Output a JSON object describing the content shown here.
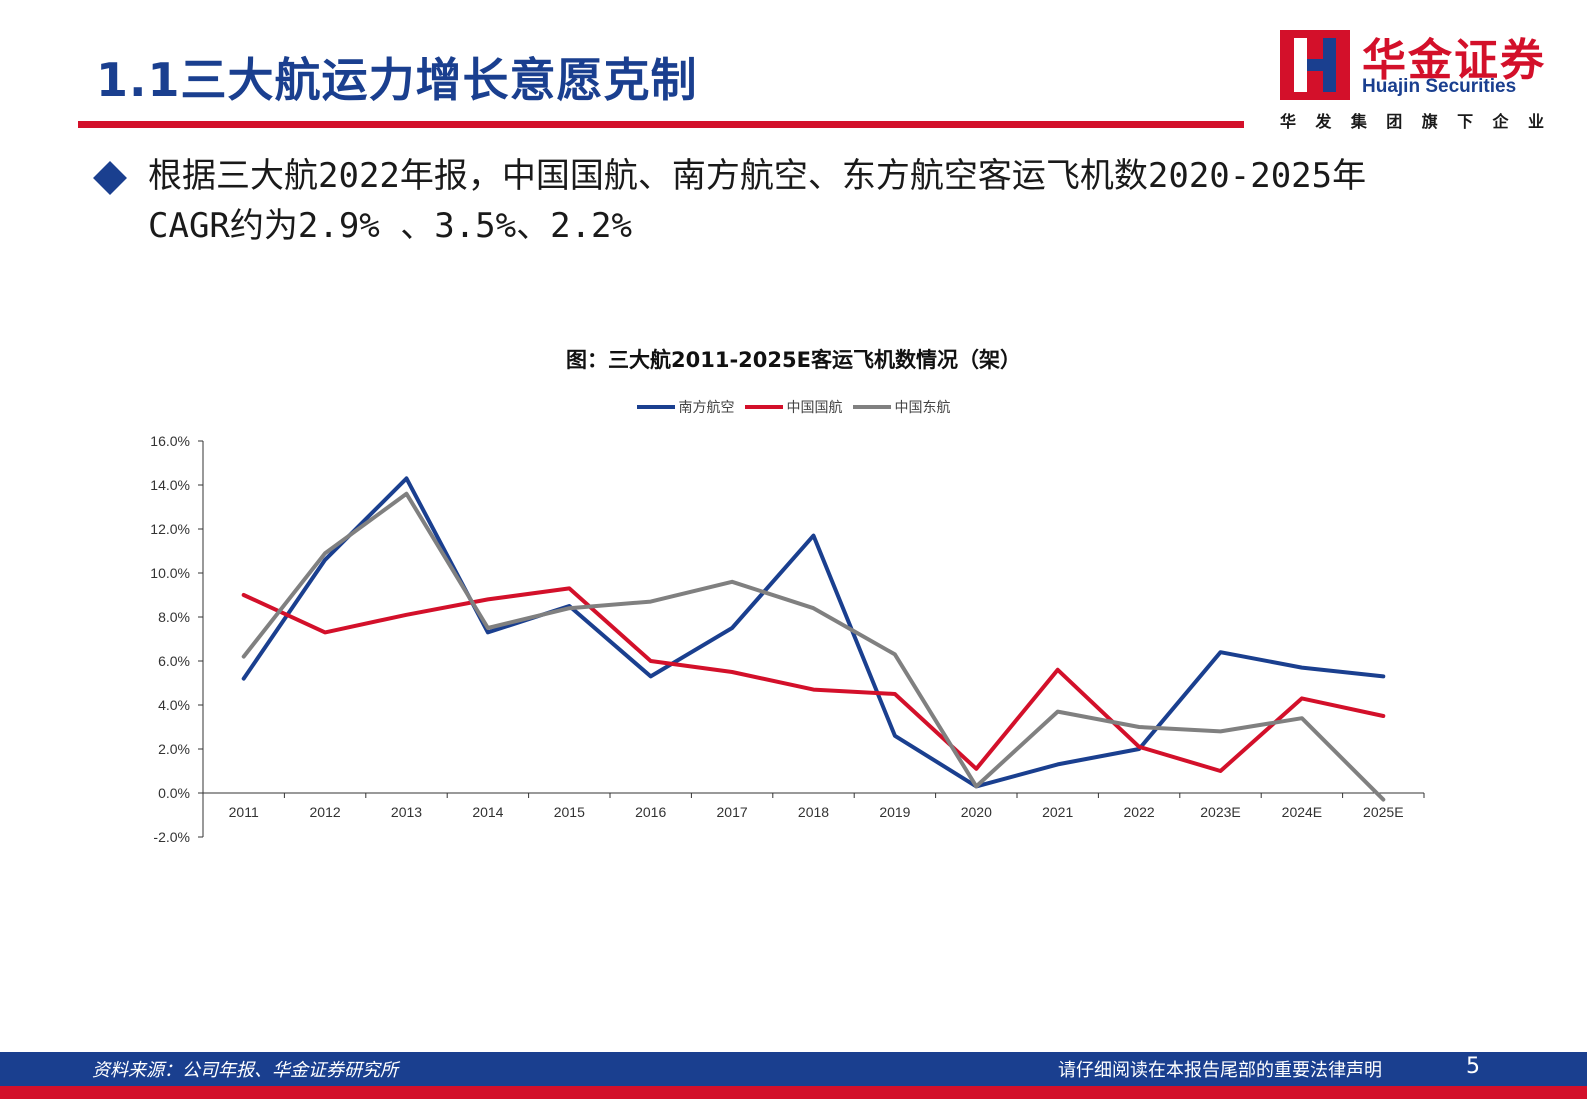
{
  "header": {
    "title": "1.1三大航运力增长意愿克制",
    "logo_cn": "华金证券",
    "logo_en": "Huajin Securities",
    "logo_sub": [
      "华",
      "发",
      "集",
      "团",
      "旗",
      "下",
      "企",
      "业"
    ]
  },
  "bullet": {
    "text": "根据三大航2022年报，中国国航、南方航空、东方航空客运飞机数2020-2025年CAGR约为2.9% 、3.5%、2.2%"
  },
  "chart_data": {
    "type": "line",
    "title": "图：三大航2011-2025E客运飞机数情况（架）",
    "categories": [
      "2011",
      "2012",
      "2013",
      "2014",
      "2015",
      "2016",
      "2017",
      "2018",
      "2019",
      "2020",
      "2021",
      "2022",
      "2023E",
      "2024E",
      "2025E"
    ],
    "series": [
      {
        "name": "南方航空",
        "color": "#1a3f8f",
        "values": [
          5.2,
          10.6,
          14.3,
          7.3,
          8.5,
          5.3,
          7.5,
          11.7,
          2.6,
          0.3,
          1.3,
          2.0,
          6.4,
          5.7,
          5.3
        ]
      },
      {
        "name": "中国国航",
        "color": "#d3102a",
        "values": [
          9.0,
          7.3,
          8.1,
          8.8,
          9.3,
          6.0,
          5.5,
          4.7,
          4.5,
          1.1,
          5.6,
          2.1,
          1.0,
          4.3,
          3.5
        ]
      },
      {
        "name": "中国东航",
        "color": "#808080",
        "values": [
          6.2,
          10.9,
          13.6,
          7.5,
          8.4,
          8.7,
          9.6,
          8.4,
          6.3,
          0.3,
          3.7,
          3.0,
          2.8,
          3.4,
          -0.3
        ]
      }
    ],
    "y_ticks": [
      "16.0%",
      "14.0%",
      "12.0%",
      "10.0%",
      "8.0%",
      "6.0%",
      "4.0%",
      "2.0%",
      "0.0%",
      "-2.0%"
    ],
    "ylim": [
      -2,
      16
    ],
    "xlabel": "",
    "ylabel": "",
    "legend_position": "top-center",
    "grid": false
  },
  "footer": {
    "source": "资料来源：公司年报、华金证券研究所",
    "disclaimer": "请仔细阅读在本报告尾部的重要法律声明",
    "page": "5"
  },
  "colors": {
    "brand_blue": "#1a3f8f",
    "brand_red": "#d3102a"
  }
}
